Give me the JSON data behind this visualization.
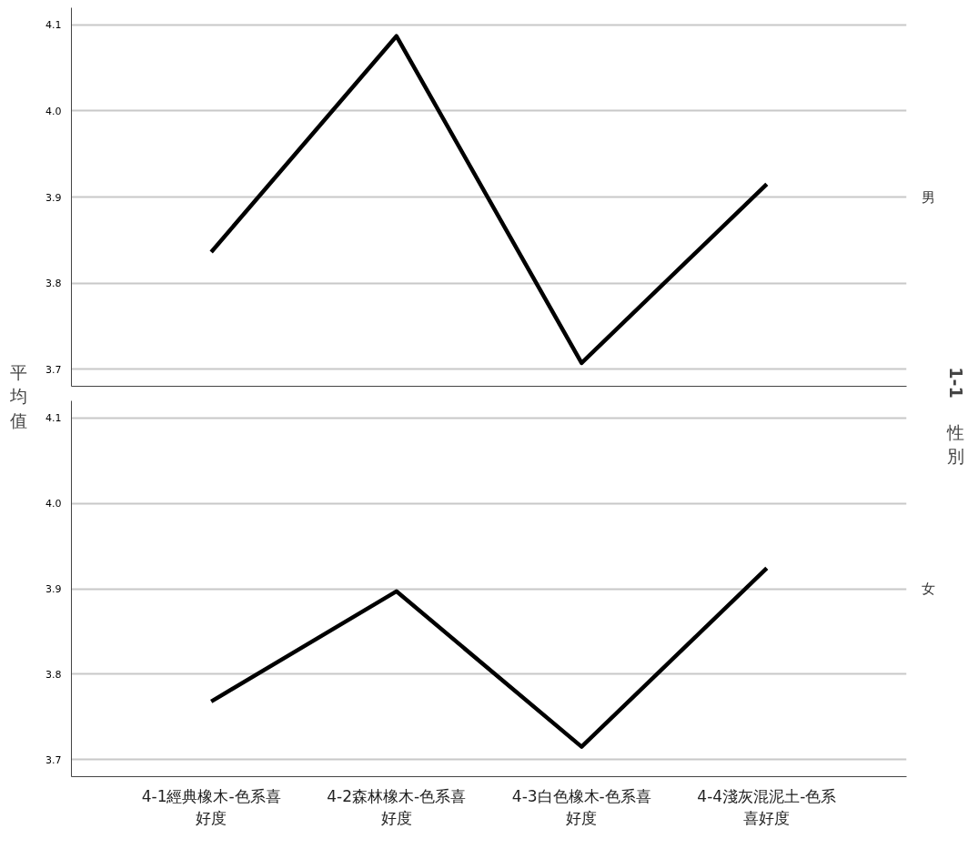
{
  "chart_data": [
    {
      "type": "line",
      "ylabel": "平均值",
      "legend_title": "1-1性別",
      "categories": [
        "4-1經典橡木-色系喜好度",
        "4-2森林橡木-色系喜好度",
        "4-3白色橡木-色系喜好度",
        "4-4淺灰混泥土-色系喜好度"
      ],
      "series": [
        {
          "name": "男",
          "color": "#000000",
          "values": [
            3.836,
            4.087,
            3.707,
            3.915
          ]
        }
      ],
      "ylim": [
        3.68,
        4.12
      ],
      "yticks": [
        3.7,
        3.8,
        3.9,
        {
          "value": 4.0,
          "label": "4.0"
        },
        4.1
      ],
      "grid": "y",
      "tick_labels": "y"
    },
    {
      "type": "line",
      "categories": [
        "4-1經典橡木-色系喜好度",
        "4-2森林橡木-色系喜好度",
        "4-3白色橡木-色系喜好度",
        "4-4淺灰混泥土-色系喜好度"
      ],
      "series": [
        {
          "name": "女",
          "color": "#000000",
          "values": [
            3.768,
            3.897,
            3.715,
            3.924
          ]
        }
      ],
      "ylim": [
        3.68,
        4.12
      ],
      "yticks": [
        3.7,
        3.8,
        3.9,
        {
          "value": 4.0,
          "label": "4.0"
        },
        4.1
      ],
      "grid": "y"
    }
  ]
}
